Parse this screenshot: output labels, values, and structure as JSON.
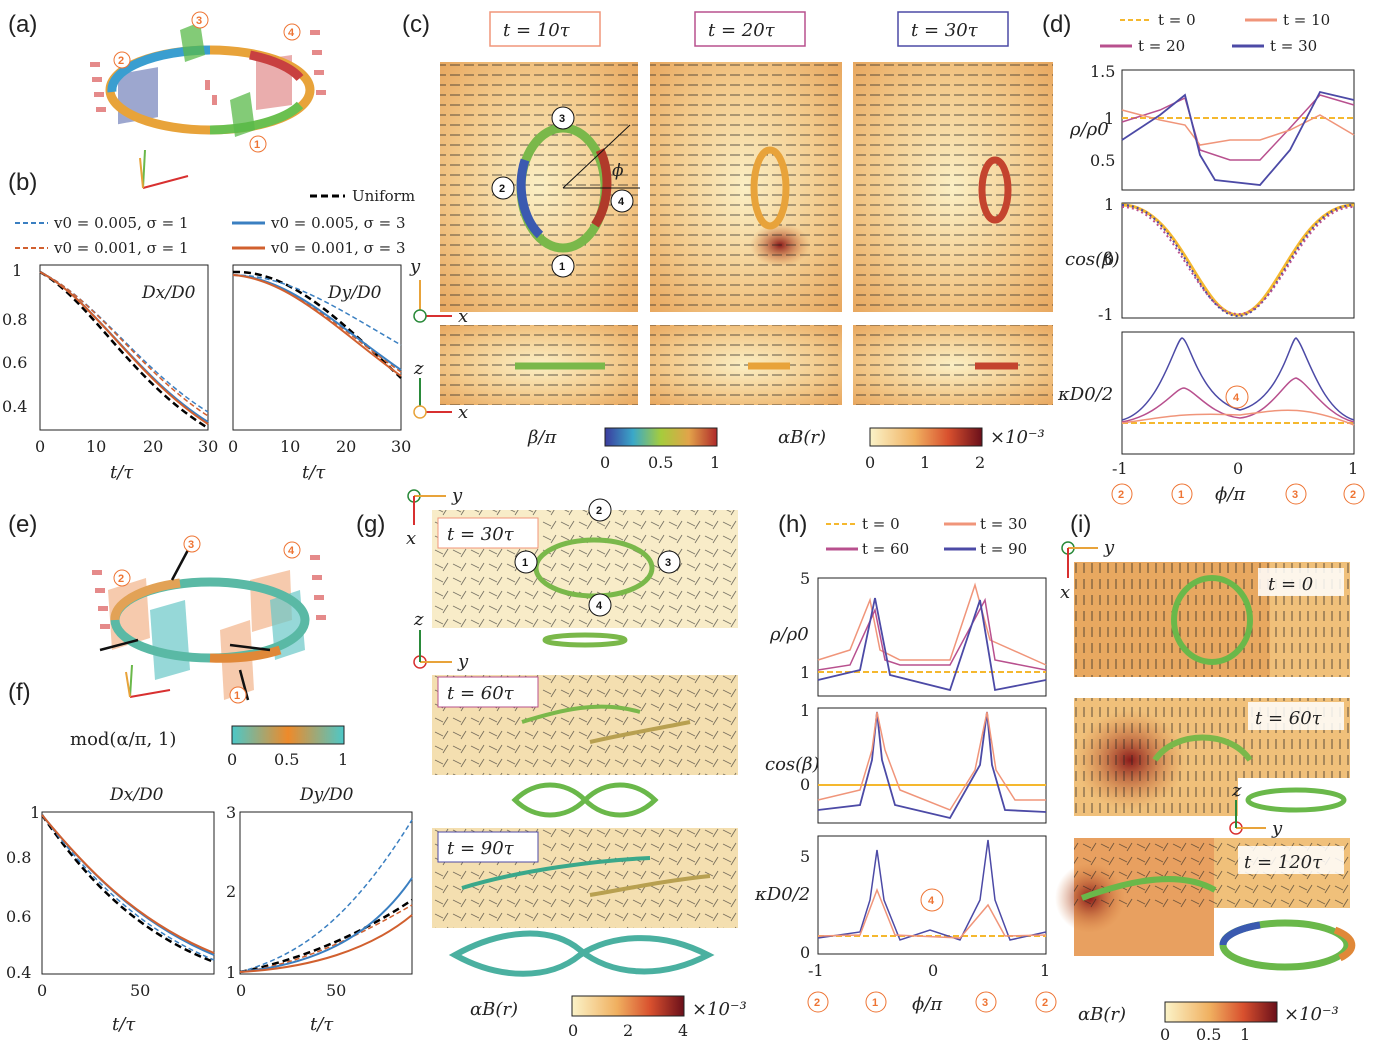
{
  "panel_labels": [
    "(a)",
    "(b)",
    "(c)",
    "(d)",
    "(e)",
    "(f)",
    "(g)",
    "(h)",
    "(i)"
  ],
  "legend_b": {
    "uniform": "Uniform",
    "items": [
      "v0 = 0.005, σ = 1",
      "v0 = 0.001, σ = 1",
      "v0 = 0.005, σ = 3",
      "v0 = 0.001, σ = 3"
    ]
  },
  "panel_b": {
    "dx_label": "Dx/D0",
    "dy_label": "Dy/D0",
    "xlabel": "t/τ",
    "xticks": [
      "0",
      "10",
      "20",
      "30"
    ],
    "yticks": [
      "0.4",
      "0.6",
      "0.8",
      "1"
    ]
  },
  "panel_c": {
    "titles": [
      "t = 10τ",
      "t = 20τ",
      "t = 30τ"
    ],
    "axes_top": [
      "y",
      "x"
    ],
    "axes_bottom": [
      "z",
      "x"
    ],
    "phi": "ϕ",
    "cbar_beta": {
      "label": "β/π",
      "ticks": [
        "0",
        "0.5",
        "1"
      ]
    },
    "cbar_alpha": {
      "label": "αB(r)",
      "ticks": [
        "0",
        "1",
        "2"
      ],
      "scale": "×10⁻³"
    }
  },
  "panel_d": {
    "legend": [
      "t = 0",
      "t = 10",
      "t = 20",
      "t = 30"
    ],
    "ylabels": [
      "ρ/ρ0",
      "cos(β)",
      "κD0/2"
    ],
    "xlabel": "ϕ/π",
    "xticks": [
      "-1",
      "0",
      "1"
    ],
    "yticks_rho": [
      "0.5",
      "1",
      "1.5"
    ],
    "yticks_cos": [
      "-1",
      "0",
      "1"
    ],
    "marker": "4",
    "bottom_markers": [
      "2",
      "1",
      "3",
      "2"
    ]
  },
  "panel_e": {
    "cbar_label": "mod(α/π, 1)",
    "ticks": [
      "0",
      "0.5",
      "1"
    ]
  },
  "panel_f": {
    "dx_label": "Dx/D0",
    "dy_label": "Dy/D0",
    "xlabel": "t/τ",
    "xticks": [
      "0",
      "50"
    ],
    "yticks_left": [
      "0.4",
      "0.6",
      "0.8",
      "1"
    ],
    "yticks_right": [
      "1",
      "2",
      "3"
    ]
  },
  "panel_g": {
    "titles": [
      "t = 30τ",
      "t = 60τ",
      "t = 90τ"
    ],
    "axes_top": [
      "y",
      "x"
    ],
    "axes_side": [
      "z",
      "y"
    ],
    "cbar": {
      "label": "αB(r)",
      "ticks": [
        "0",
        "2",
        "4"
      ],
      "scale": "×10⁻³"
    }
  },
  "panel_h": {
    "legend": [
      "t = 0",
      "t = 30",
      "t = 60",
      "t = 90"
    ],
    "ylabels": [
      "ρ/ρ0",
      "cos(β)",
      "κD0/2"
    ],
    "xlabel": "ϕ/π",
    "xticks": [
      "-1",
      "0",
      "1"
    ],
    "yticks_rho": [
      "1",
      "5"
    ],
    "yticks_cos": [
      "0",
      "1"
    ],
    "yticks_k": [
      "0",
      "5"
    ],
    "marker": "4",
    "bottom_markers": [
      "2",
      "1",
      "3",
      "2"
    ]
  },
  "panel_i": {
    "titles": [
      "t = 0",
      "t = 60τ",
      "t = 120τ"
    ],
    "axes_top": [
      "y",
      "x"
    ],
    "axes_side": [
      "z",
      "y"
    ],
    "cbar": {
      "label": "αB(r)",
      "ticks": [
        "0",
        "0.5",
        "1"
      ],
      "scale": "×10⁻³"
    }
  },
  "colors": {
    "blue": "#3a7fc1",
    "orange": "#d1602f",
    "salmon": "#f0957a",
    "magenta": "#b8508e",
    "purple": "#4c4aa6",
    "yellow": "#f5b82e",
    "marker_orange": "#ee7433"
  }
}
